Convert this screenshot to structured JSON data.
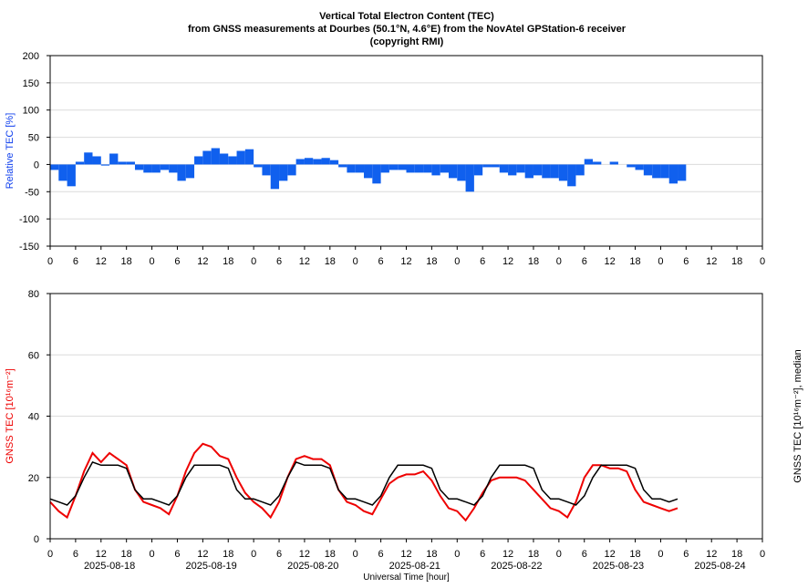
{
  "chart_data": [
    {
      "type": "bar",
      "title": [
        "Vertical Total Electron Content (TEC)",
        "from GNSS measurements at Dourbes (50.1°N, 4.6°E) from the NovAtel GPStation-6 receiver",
        "(copyright RMI)"
      ],
      "ylabel": "Relative TEC [%]",
      "xlim": [
        0,
        168
      ],
      "ylim": [
        -150,
        200
      ],
      "yticks": [
        -150,
        -100,
        -50,
        0,
        50,
        100,
        150,
        200
      ],
      "grid": true,
      "xticks": [
        {
          "value": 0,
          "label": "0"
        },
        {
          "value": 6,
          "label": "6"
        },
        {
          "value": 12,
          "label": "12"
        },
        {
          "value": 18,
          "label": "18"
        },
        {
          "value": 24,
          "label": "0"
        },
        {
          "value": 30,
          "label": "6"
        },
        {
          "value": 36,
          "label": "12"
        },
        {
          "value": 42,
          "label": "18"
        },
        {
          "value": 48,
          "label": "0"
        },
        {
          "value": 54,
          "label": "6"
        },
        {
          "value": 60,
          "label": "12"
        },
        {
          "value": 66,
          "label": "18"
        },
        {
          "value": 72,
          "label": "0"
        },
        {
          "value": 78,
          "label": "6"
        },
        {
          "value": 84,
          "label": "12"
        },
        {
          "value": 90,
          "label": "18"
        },
        {
          "value": 96,
          "label": "0"
        },
        {
          "value": 102,
          "label": "6"
        },
        {
          "value": 108,
          "label": "12"
        },
        {
          "value": 114,
          "label": "18"
        },
        {
          "value": 120,
          "label": "0"
        },
        {
          "value": 126,
          "label": "6"
        },
        {
          "value": 132,
          "label": "12"
        },
        {
          "value": 138,
          "label": "18"
        },
        {
          "value": 144,
          "label": "0"
        },
        {
          "value": 150,
          "label": "6"
        },
        {
          "value": 156,
          "label": "12"
        },
        {
          "value": 162,
          "label": "18"
        },
        {
          "value": 168,
          "label": "0"
        }
      ],
      "x": [
        0,
        2,
        4,
        6,
        8,
        10,
        12,
        14,
        16,
        18,
        20,
        22,
        24,
        26,
        28,
        30,
        32,
        34,
        36,
        38,
        40,
        42,
        44,
        46,
        48,
        50,
        52,
        54,
        56,
        58,
        60,
        62,
        64,
        66,
        68,
        70,
        72,
        74,
        76,
        78,
        80,
        82,
        84,
        86,
        88,
        90,
        92,
        94,
        96,
        98,
        100,
        102,
        104,
        106,
        108,
        110,
        112,
        114,
        116,
        118,
        120,
        122,
        124,
        126,
        128,
        130,
        132,
        134,
        136,
        138,
        140,
        142,
        144,
        146,
        148
      ],
      "color": "#1060ee",
      "values": [
        -10,
        -30,
        -40,
        5,
        22,
        15,
        -2,
        20,
        5,
        5,
        -10,
        -15,
        -15,
        -10,
        -15,
        -30,
        -25,
        15,
        25,
        30,
        20,
        15,
        25,
        28,
        -5,
        -20,
        -45,
        -30,
        -20,
        10,
        12,
        10,
        12,
        8,
        -5,
        -15,
        -15,
        -25,
        -35,
        -15,
        -10,
        -10,
        -15,
        -15,
        -15,
        -20,
        -15,
        -25,
        -30,
        -50,
        -20,
        -5,
        -5,
        -15,
        -20,
        -15,
        -25,
        -20,
        -25,
        -25,
        -30,
        -40,
        -20,
        10,
        5,
        0,
        5,
        0,
        -5,
        -10,
        -20,
        -25,
        -25,
        -35,
        -30
      ]
    },
    {
      "type": "line",
      "ylabel": "GNSS TEC [10¹⁶m⁻²]",
      "y2label": "GNSS TEC [10¹⁶m⁻²], median",
      "xlabel": "Universal Time [hour]",
      "dates": [
        "2025-08-18",
        "2025-08-19",
        "2025-08-20",
        "2025-08-21",
        "2025-08-22",
        "2025-08-23",
        "2025-08-24"
      ],
      "xlim": [
        0,
        168
      ],
      "ylim": [
        0,
        80
      ],
      "yticks": [
        0,
        20,
        40,
        60,
        80
      ],
      "grid": true,
      "xticks": [
        {
          "value": 0,
          "label": "0"
        },
        {
          "value": 6,
          "label": "6"
        },
        {
          "value": 12,
          "label": "12"
        },
        {
          "value": 18,
          "label": "18"
        },
        {
          "value": 24,
          "label": "0"
        },
        {
          "value": 30,
          "label": "6"
        },
        {
          "value": 36,
          "label": "12"
        },
        {
          "value": 42,
          "label": "18"
        },
        {
          "value": 48,
          "label": "0"
        },
        {
          "value": 54,
          "label": "6"
        },
        {
          "value": 60,
          "label": "12"
        },
        {
          "value": 66,
          "label": "18"
        },
        {
          "value": 72,
          "label": "0"
        },
        {
          "value": 78,
          "label": "6"
        },
        {
          "value": 84,
          "label": "12"
        },
        {
          "value": 90,
          "label": "18"
        },
        {
          "value": 96,
          "label": "0"
        },
        {
          "value": 102,
          "label": "6"
        },
        {
          "value": 108,
          "label": "12"
        },
        {
          "value": 114,
          "label": "18"
        },
        {
          "value": 120,
          "label": "0"
        },
        {
          "value": 126,
          "label": "6"
        },
        {
          "value": 132,
          "label": "12"
        },
        {
          "value": 138,
          "label": "18"
        },
        {
          "value": 144,
          "label": "0"
        },
        {
          "value": 150,
          "label": "6"
        },
        {
          "value": 156,
          "label": "12"
        },
        {
          "value": 162,
          "label": "18"
        },
        {
          "value": 168,
          "label": "0"
        }
      ],
      "x": [
        0,
        2,
        4,
        6,
        8,
        10,
        12,
        14,
        16,
        18,
        20,
        22,
        24,
        26,
        28,
        30,
        32,
        34,
        36,
        38,
        40,
        42,
        44,
        46,
        48,
        50,
        52,
        54,
        56,
        58,
        60,
        62,
        64,
        66,
        68,
        70,
        72,
        74,
        76,
        78,
        80,
        82,
        84,
        86,
        88,
        90,
        92,
        94,
        96,
        98,
        100,
        102,
        104,
        106,
        108,
        110,
        112,
        114,
        116,
        118,
        120,
        122,
        124,
        126,
        128,
        130,
        132,
        134,
        136,
        138,
        140,
        142,
        144,
        146,
        148
      ],
      "series": [
        {
          "color": "#ee0000",
          "values": [
            12,
            9,
            7,
            14,
            22,
            28,
            25,
            28,
            26,
            24,
            16,
            12,
            11,
            10,
            8,
            14,
            22,
            28,
            31,
            30,
            27,
            26,
            20,
            15,
            12,
            10,
            7,
            12,
            20,
            26,
            27,
            26,
            26,
            24,
            16,
            12,
            11,
            9,
            8,
            13,
            18,
            20,
            21,
            21,
            22,
            19,
            14,
            10,
            9,
            6,
            10,
            15,
            19,
            20,
            20,
            20,
            19,
            16,
            13,
            10,
            9,
            7,
            12,
            20,
            24,
            24,
            23,
            23,
            22,
            16,
            12,
            11,
            10,
            9,
            10
          ]
        },
        {
          "color": "#000000",
          "values": [
            13,
            12,
            11,
            14,
            20,
            25,
            24,
            24,
            24,
            23,
            16,
            13,
            13,
            12,
            11,
            14,
            20,
            24,
            24,
            24,
            24,
            23,
            16,
            13,
            13,
            12,
            11,
            14,
            20,
            25,
            24,
            24,
            24,
            23,
            16,
            13,
            13,
            12,
            11,
            14,
            20,
            24,
            24,
            24,
            24,
            23,
            16,
            13,
            13,
            12,
            11,
            14,
            20,
            24,
            24,
            24,
            24,
            23,
            16,
            13,
            13,
            12,
            11,
            14,
            20,
            24,
            24,
            24,
            24,
            23,
            16,
            13,
            13,
            12,
            13
          ]
        }
      ]
    }
  ]
}
